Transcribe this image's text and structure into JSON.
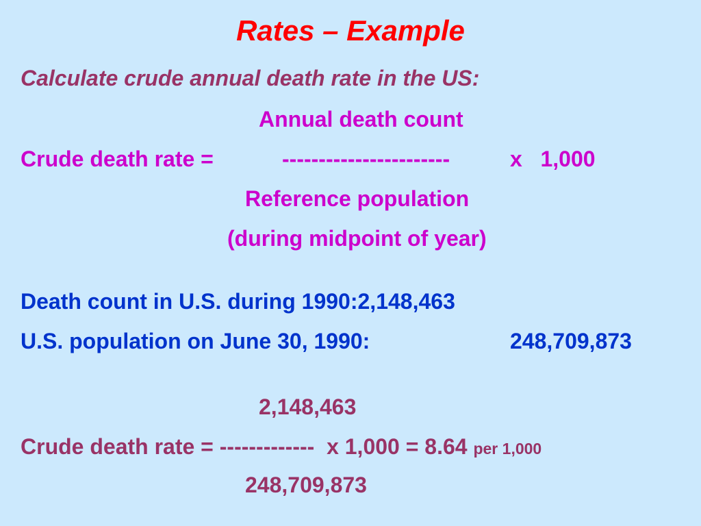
{
  "title": "Rates – Example",
  "subtitle": "Calculate crude annual death rate in the US:",
  "formula": {
    "numerator": "Annual death count",
    "lhs": "Crude death rate =",
    "bar": "-----------------------",
    "multiplier": "x   1,000",
    "denominator": "Reference population",
    "denominator_note": "(during midpoint of year)"
  },
  "facts": {
    "death_count": "Death count in U.S. during 1990:2,148,463",
    "population_label": "U.S. population on June 30, 1990:",
    "population_value": "248,709,873"
  },
  "calculation": {
    "numerator": "2,148,463",
    "expression": "Crude death rate = -------------  x 1,000 = 8.64 ",
    "unit": "per 1,000",
    "denominator": "248,709,873"
  }
}
